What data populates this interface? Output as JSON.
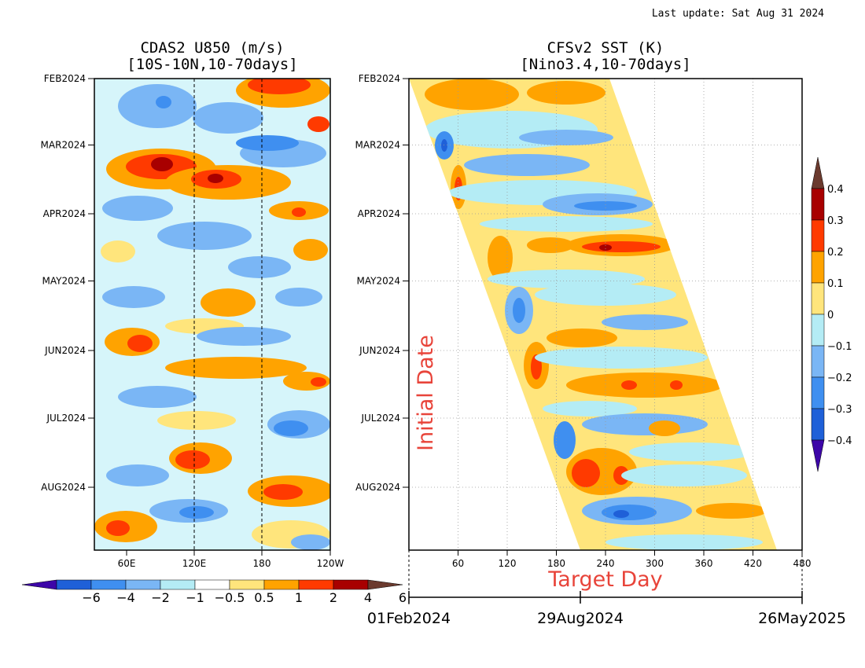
{
  "header": {
    "last_update": "Last update: Sat Aug 31 2024"
  },
  "chart_data": [
    {
      "type": "heatmap",
      "title": "CDAS2 U850 (m/s)",
      "subtitle": "[10S-10N,10-70days]",
      "x_ticks": [
        "60E",
        "120E",
        "180",
        "120W"
      ],
      "y_ticks": [
        "FEB2024",
        "MAR2024",
        "APR2024",
        "MAY2024",
        "JUN2024",
        "JUL2024",
        "AUG2024"
      ],
      "dashed_lines_at": [
        "120E",
        "180"
      ],
      "colorbar": {
        "orientation": "horizontal",
        "labels": [
          "−6",
          "−4",
          "−2",
          "−1",
          "−0.5",
          "0.5",
          "1",
          "2",
          "4",
          "6"
        ],
        "colors": [
          "#3d06a8",
          "#1f60d8",
          "#3f8ff0",
          "#7ab6f5",
          "#b4ecf5",
          "#ffffff",
          "#ffe57c",
          "#ffa300",
          "#ff3a00",
          "#a80000",
          "#6b3a2e"
        ]
      }
    },
    {
      "type": "heatmap",
      "title": "CFSv2 SST (K)",
      "subtitle": "[Nino3.4,10-70days]",
      "x_ticks": [
        "60",
        "120",
        "180",
        "240",
        "300",
        "360",
        "420",
        "480"
      ],
      "y_ticks": [
        "FEB2024",
        "MAR2024",
        "APR2024",
        "MAY2024",
        "JUN2024",
        "JUL2024",
        "AUG2024"
      ],
      "x_range": [
        0,
        480
      ],
      "xlabel": "Target Day",
      "ylabel": "Initial Date",
      "date_axis": [
        "01Feb2024",
        "29Aug2024",
        "26May2025"
      ],
      "colorbar": {
        "orientation": "vertical",
        "labels": [
          "0.4",
          "0.3",
          "0.2",
          "0.1",
          "0",
          "−0.1",
          "−0.2",
          "−0.3",
          "−0.4"
        ],
        "colors": [
          "#6b3a2e",
          "#a80000",
          "#ff3a00",
          "#ffa300",
          "#ffe57c",
          "#b4ecf5",
          "#7ab6f5",
          "#3f8ff0",
          "#1f60d8",
          "#3d06a8"
        ]
      }
    }
  ]
}
